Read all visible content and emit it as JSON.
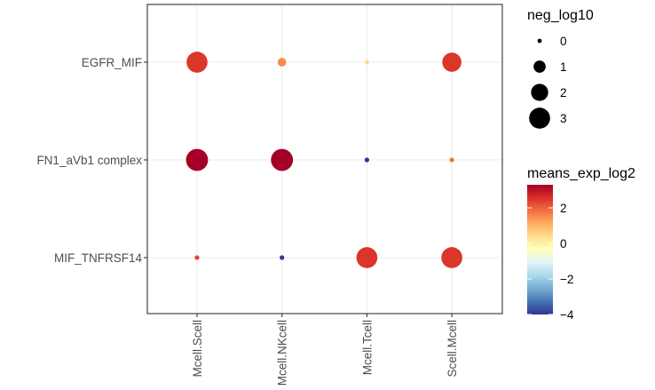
{
  "chart_data": {
    "type": "scatter",
    "subtype": "dot-plot",
    "x_categories": [
      "Mcell.Scell",
      "Mcell.NKcell",
      "Mcell.Tcell",
      "Scell.Mcell"
    ],
    "y_categories": [
      "EGFR_MIF",
      "FN1_aVb1 complex",
      "MIF_TNFRSF14"
    ],
    "points": [
      {
        "x": "Mcell.Scell",
        "y": "EGFR_MIF",
        "neg_log10": 3,
        "means_exp_log2": 2.5
      },
      {
        "x": "Mcell.NKcell",
        "y": "EGFR_MIF",
        "neg_log10": 0.5,
        "means_exp_log2": 1.5
      },
      {
        "x": "Mcell.Tcell",
        "y": "EGFR_MIF",
        "neg_log10": 0.1,
        "means_exp_log2": 0.5
      },
      {
        "x": "Scell.Mcell",
        "y": "EGFR_MIF",
        "neg_log10": 2.5,
        "means_exp_log2": 2.5
      },
      {
        "x": "Mcell.Scell",
        "y": "FN1_aVb1 complex",
        "neg_log10": 3.3,
        "means_exp_log2": 3.3
      },
      {
        "x": "Mcell.NKcell",
        "y": "FN1_aVb1 complex",
        "neg_log10": 3.3,
        "means_exp_log2": 3.3
      },
      {
        "x": "Mcell.Tcell",
        "y": "FN1_aVb1 complex",
        "neg_log10": 0.15,
        "means_exp_log2": -4
      },
      {
        "x": "Scell.Mcell",
        "y": "FN1_aVb1 complex",
        "neg_log10": 0.15,
        "means_exp_log2": 1.8
      },
      {
        "x": "Mcell.Scell",
        "y": "MIF_TNFRSF14",
        "neg_log10": 0.15,
        "means_exp_log2": 2.3
      },
      {
        "x": "Mcell.NKcell",
        "y": "MIF_TNFRSF14",
        "neg_log10": 0.15,
        "means_exp_log2": -4
      },
      {
        "x": "Mcell.Tcell",
        "y": "MIF_TNFRSF14",
        "neg_log10": 3,
        "means_exp_log2": 2.5
      },
      {
        "x": "Scell.Mcell",
        "y": "MIF_TNFRSF14",
        "neg_log10": 3,
        "means_exp_log2": 2.5
      }
    ],
    "size_legend": {
      "title": "neg_log10",
      "breaks": [
        0,
        1,
        2,
        3
      ]
    },
    "color_legend": {
      "title": "means_exp_log2",
      "breaks": [
        2,
        0,
        -2,
        -4
      ],
      "break_labels": [
        "2",
        "0",
        "−2",
        "−4"
      ],
      "range": [
        -4,
        3.3
      ],
      "palette": "RdYlBu reversed"
    },
    "xlabel": "",
    "ylabel": "",
    "grid": true,
    "legend_position": "right"
  }
}
